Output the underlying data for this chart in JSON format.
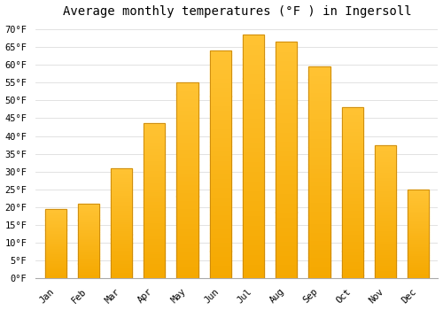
{
  "title": "Average monthly temperatures (°F ) in Ingersoll",
  "months": [
    "Jan",
    "Feb",
    "Mar",
    "Apr",
    "May",
    "Jun",
    "Jul",
    "Aug",
    "Sep",
    "Oct",
    "Nov",
    "Dec"
  ],
  "values": [
    19.5,
    21.0,
    31.0,
    43.5,
    55.0,
    64.0,
    68.5,
    66.5,
    59.5,
    48.0,
    37.5,
    25.0
  ],
  "bar_color_top": "#FFC333",
  "bar_color_bottom": "#F5A800",
  "bar_edge_color": "#C8860A",
  "background_color": "#FFFFFF",
  "grid_color": "#DDDDDD",
  "ylim": [
    0,
    72
  ],
  "yticks": [
    0,
    5,
    10,
    15,
    20,
    25,
    30,
    35,
    40,
    45,
    50,
    55,
    60,
    65,
    70
  ],
  "title_fontsize": 10,
  "tick_fontsize": 7.5,
  "font_family": "monospace"
}
